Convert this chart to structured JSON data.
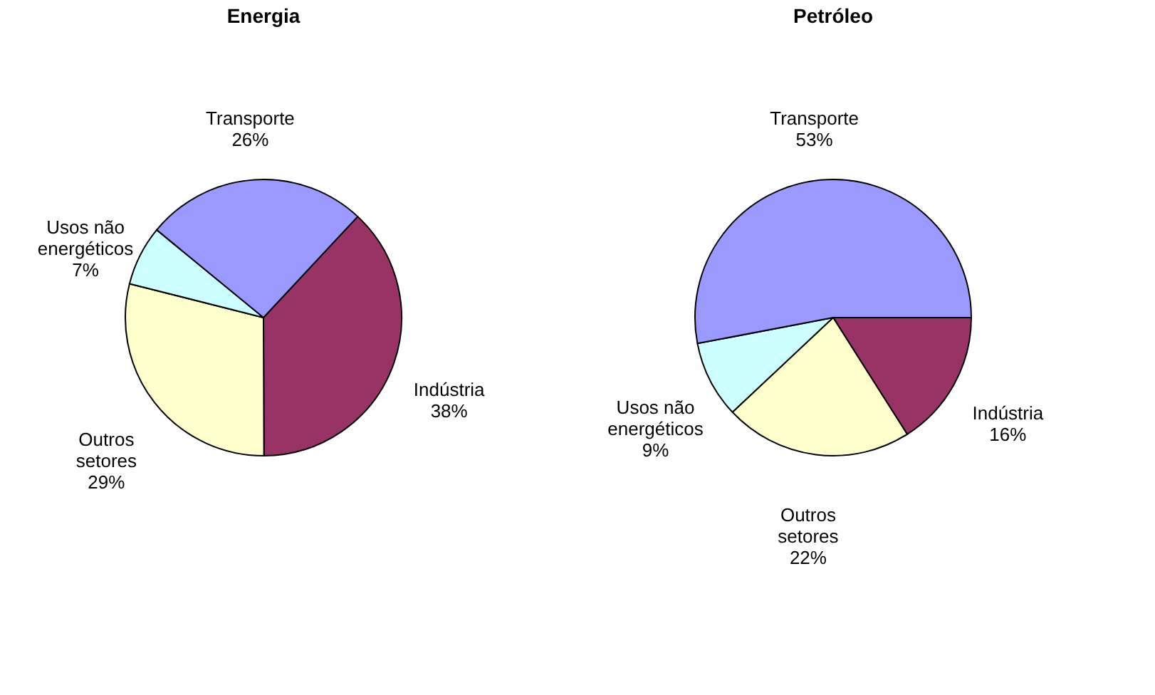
{
  "chart_data": [
    {
      "type": "pie",
      "title": "Energia",
      "categories": [
        "Indústria",
        "Outros setores",
        "Usos não energéticos",
        "Transporte"
      ],
      "values": [
        38,
        29,
        7,
        26
      ],
      "value_labels": [
        "38%",
        "29%",
        "7%",
        "26%"
      ],
      "colors": [
        "#993366",
        "#ffffcc",
        "#ccffff",
        "#9999ff"
      ],
      "legend": false
    },
    {
      "type": "pie",
      "title": "Petróleo",
      "categories": [
        "Indústria",
        "Outros setores",
        "Usos não energéticos",
        "Transporte"
      ],
      "values": [
        16,
        22,
        9,
        53
      ],
      "value_labels": [
        "16%",
        "22%",
        "9%",
        "53%"
      ],
      "colors": [
        "#993366",
        "#ffffcc",
        "#ccffff",
        "#9999ff"
      ],
      "legend": false
    }
  ]
}
